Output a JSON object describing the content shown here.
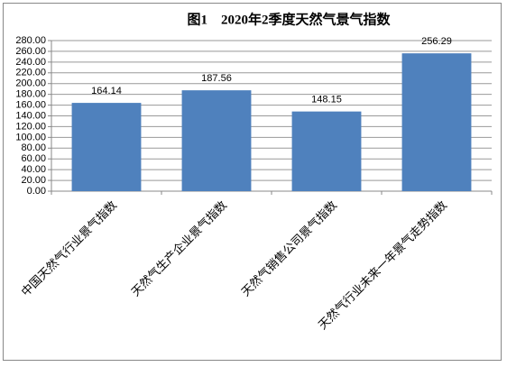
{
  "chart_data": {
    "type": "bar",
    "title": "图1　2020年2季度天然气景气指数",
    "categories": [
      "中国天然气行业景气指数",
      "天然气生产企业景气指数",
      "天然气销售公司景气指数",
      "天然气行业未来一年景气走势指数"
    ],
    "values": [
      164.14,
      187.56,
      148.15,
      256.29
    ],
    "color": "#4f81bd",
    "ylim": [
      0,
      280
    ],
    "yticks": [
      {
        "value": 0,
        "label": "0.00"
      },
      {
        "value": 20,
        "label": "20.00"
      },
      {
        "value": 40,
        "label": "40.00"
      },
      {
        "value": 60,
        "label": "60.00"
      },
      {
        "value": 80,
        "label": "80.00"
      },
      {
        "value": 100,
        "label": "100.00"
      },
      {
        "value": 120,
        "label": "120.00"
      },
      {
        "value": 140,
        "label": "140.00"
      },
      {
        "value": 160,
        "label": "160.00"
      },
      {
        "value": 180,
        "label": "180.00"
      },
      {
        "value": 200,
        "label": "200.00"
      },
      {
        "value": 220,
        "label": "220.00"
      },
      {
        "value": 240,
        "label": "240.00"
      },
      {
        "value": 260,
        "label": "260.00"
      },
      {
        "value": 280,
        "label": "280.00"
      }
    ],
    "grid": true
  }
}
